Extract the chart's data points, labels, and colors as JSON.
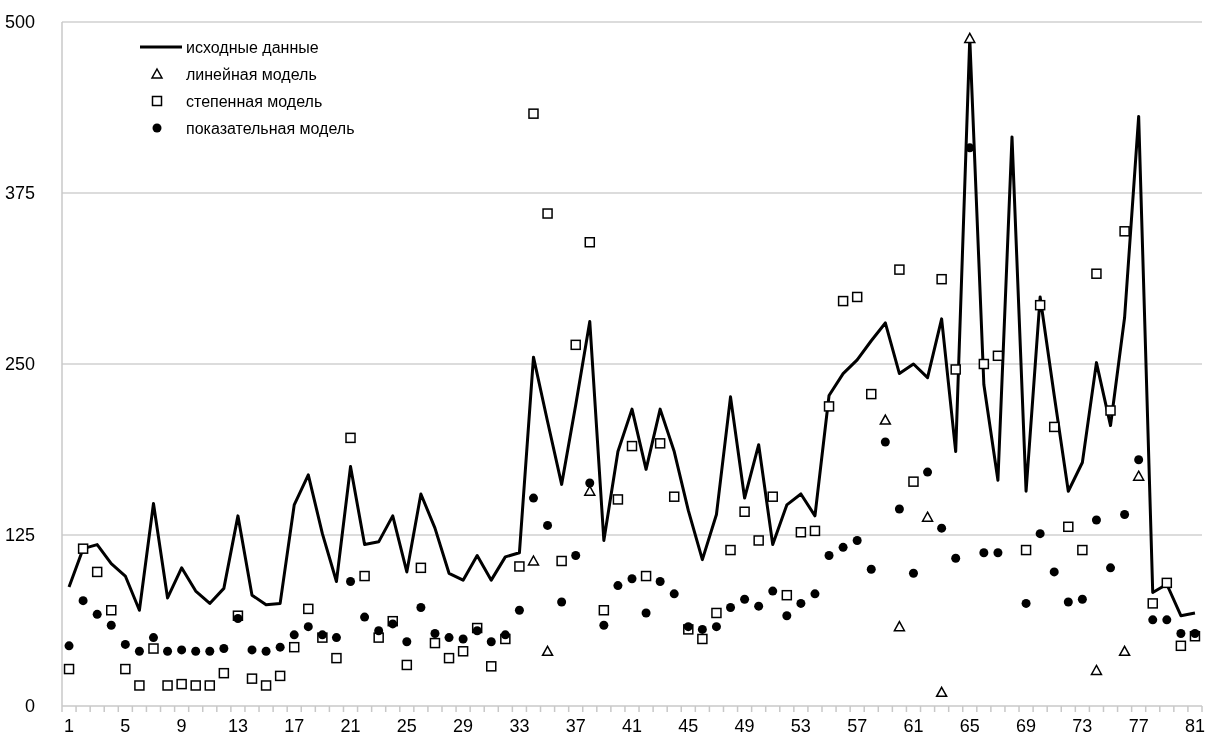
{
  "chart_data": {
    "type": "line",
    "categories": [
      "1",
      null,
      null,
      null,
      "5",
      null,
      null,
      null,
      "9",
      null,
      null,
      null,
      "13",
      null,
      null,
      null,
      "17",
      null,
      null,
      null,
      "21",
      null,
      null,
      null,
      "25",
      null,
      null,
      null,
      "29",
      null,
      null,
      null,
      "33",
      null,
      null,
      null,
      "37",
      null,
      null,
      null,
      "41",
      null,
      null,
      null,
      "45",
      null,
      null,
      null,
      "49",
      null,
      null,
      null,
      "53",
      null,
      null,
      null,
      "57",
      null,
      null,
      null,
      "61",
      null,
      null,
      null,
      "65",
      null,
      null,
      null,
      "69",
      null,
      null,
      null,
      "73",
      null,
      null,
      null,
      "77",
      null,
      null,
      null,
      "81"
    ],
    "ylim": [
      0,
      500
    ],
    "yticks": [
      0,
      125,
      250,
      375,
      500
    ],
    "grid": "y",
    "legend": "top left",
    "series": [
      {
        "name": "исходные данные",
        "color": "#000000",
        "marker": "none",
        "values": [
          87,
          115,
          118,
          104,
          95,
          70,
          148,
          79,
          101,
          84,
          75,
          86,
          139,
          81,
          74,
          75,
          147,
          169,
          126,
          91,
          175,
          118,
          120,
          139,
          98,
          155,
          130,
          97,
          92,
          110,
          92,
          109,
          112,
          255,
          208,
          162,
          220,
          281,
          121,
          186,
          217,
          173,
          217,
          186,
          143,
          107,
          140,
          226,
          152,
          191,
          118,
          147,
          155,
          139,
          227,
          243,
          253,
          267,
          280,
          243,
          250,
          240,
          283,
          186,
          488,
          235,
          165,
          416,
          157,
          299,
          227,
          157,
          178,
          251,
          205,
          284,
          431,
          83,
          89,
          66,
          68
        ]
      },
      {
        "name": "линейная модель",
        "type": "scatter",
        "color": "#000000",
        "marker": "triangle",
        "values": [
          null,
          null,
          null,
          null,
          null,
          null,
          null,
          null,
          null,
          null,
          null,
          null,
          null,
          null,
          null,
          null,
          null,
          null,
          null,
          null,
          null,
          null,
          null,
          null,
          null,
          null,
          null,
          null,
          null,
          null,
          null,
          null,
          null,
          106,
          40,
          null,
          null,
          157,
          null,
          null,
          null,
          null,
          null,
          null,
          null,
          null,
          null,
          null,
          null,
          null,
          null,
          null,
          null,
          null,
          null,
          null,
          null,
          null,
          209,
          58,
          null,
          138,
          10,
          null,
          488,
          null,
          null,
          null,
          null,
          null,
          null,
          null,
          null,
          26,
          null,
          40,
          168,
          null,
          null,
          null,
          null
        ]
      },
      {
        "name": "степенная модель",
        "type": "scatter",
        "color": "#000000",
        "marker": "square",
        "values": [
          27,
          115,
          98,
          70,
          27,
          15,
          42,
          15,
          16,
          15,
          15,
          24,
          66,
          20,
          15,
          22,
          43,
          71,
          50,
          35,
          196,
          95,
          50,
          62,
          30,
          101,
          46,
          35,
          40,
          57,
          29,
          49,
          102,
          433,
          360,
          106,
          264,
          339,
          70,
          151,
          190,
          95,
          192,
          153,
          56,
          49,
          68,
          114,
          142,
          121,
          153,
          81,
          127,
          128,
          219,
          296,
          299,
          228,
          null,
          319,
          164,
          null,
          312,
          246,
          null,
          250,
          256,
          null,
          114,
          293,
          204,
          131,
          114,
          316,
          216,
          347,
          null,
          75,
          90,
          44,
          51
        ]
      },
      {
        "name": "показательная модель",
        "type": "scatter",
        "color": "#000000",
        "marker": "circle",
        "values": [
          44,
          77,
          67,
          59,
          45,
          40,
          50,
          40,
          41,
          40,
          40,
          42,
          64,
          41,
          40,
          43,
          52,
          58,
          52,
          50,
          91,
          65,
          55,
          60,
          47,
          72,
          53,
          50,
          49,
          55,
          47,
          52,
          70,
          152,
          132,
          76,
          110,
          163,
          59,
          88,
          93,
          68,
          91,
          82,
          58,
          56,
          58,
          72,
          78,
          73,
          84,
          66,
          75,
          82,
          110,
          116,
          121,
          100,
          193,
          144,
          97,
          171,
          130,
          108,
          408,
          112,
          112,
          null,
          75,
          126,
          98,
          76,
          78,
          136,
          101,
          140,
          180,
          63,
          63,
          53,
          53
        ]
      }
    ]
  }
}
